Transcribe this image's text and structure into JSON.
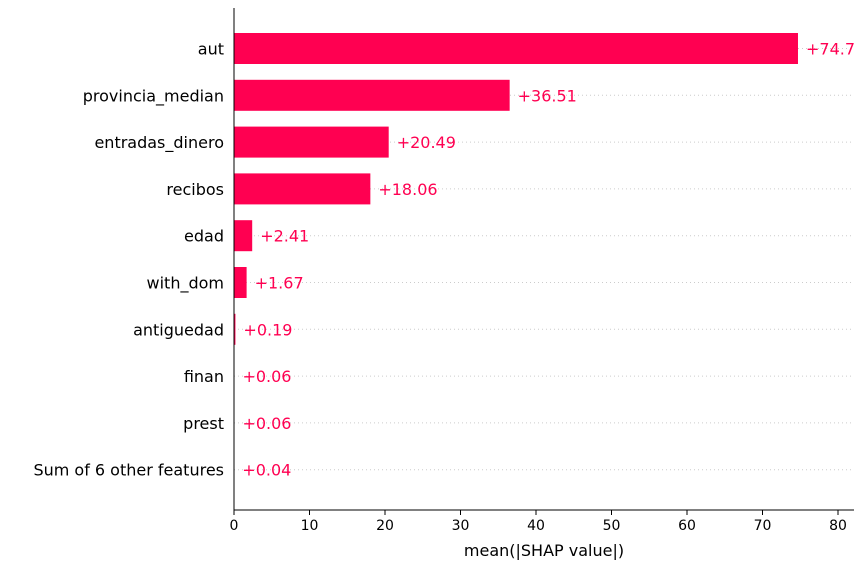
{
  "chart_data": {
    "type": "bar",
    "orientation": "horizontal",
    "categories": [
      "aut",
      "provincia_median",
      "entradas_dinero",
      "recibos",
      "edad",
      "with_dom",
      "antiguedad",
      "finan",
      "prest",
      "Sum of 6 other features"
    ],
    "values": [
      74.7,
      36.51,
      20.49,
      18.06,
      2.41,
      1.67,
      0.19,
      0.06,
      0.06,
      0.04
    ],
    "value_labels": [
      "+74.7",
      "+36.51",
      "+20.49",
      "+18.06",
      "+2.41",
      "+1.67",
      "+0.19",
      "+0.06",
      "+0.06",
      "+0.04"
    ],
    "xlabel": "mean(|SHAP value|)",
    "ylabel": "",
    "title": "",
    "xlim": [
      0,
      82
    ],
    "xticks": [
      0,
      10,
      20,
      30,
      40,
      50,
      60,
      70,
      80
    ],
    "grid": "horizontal dotted lines per category",
    "bar_color": "#ff0051",
    "label_color": "#ff0051"
  }
}
